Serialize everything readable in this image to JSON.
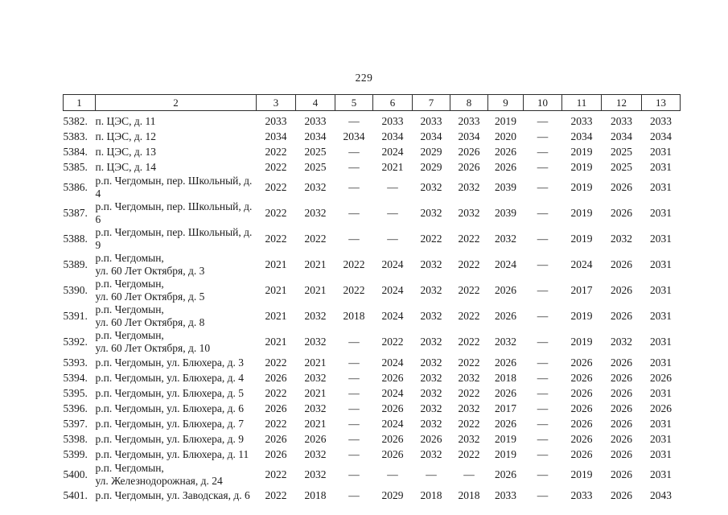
{
  "page": {
    "number": "229"
  },
  "table": {
    "columns": [
      "1",
      "2",
      "3",
      "4",
      "5",
      "6",
      "7",
      "8",
      "9",
      "10",
      "11",
      "12",
      "13"
    ],
    "rows": [
      {
        "num": "5382.",
        "address": "п. ЦЭС, д. 11",
        "values": [
          "2033",
          "2033",
          "—",
          "2033",
          "2033",
          "2033",
          "2019",
          "—",
          "2033",
          "2033",
          "2033"
        ]
      },
      {
        "num": "5383.",
        "address": "п. ЦЭС, д. 12",
        "values": [
          "2034",
          "2034",
          "2034",
          "2034",
          "2034",
          "2034",
          "2020",
          "—",
          "2034",
          "2034",
          "2034"
        ]
      },
      {
        "num": "5384.",
        "address": "п. ЦЭС, д. 13",
        "values": [
          "2022",
          "2025",
          "—",
          "2024",
          "2029",
          "2026",
          "2026",
          "—",
          "2019",
          "2025",
          "2031"
        ]
      },
      {
        "num": "5385.",
        "address": "п. ЦЭС, д. 14",
        "values": [
          "2022",
          "2025",
          "—",
          "2021",
          "2029",
          "2026",
          "2026",
          "—",
          "2019",
          "2025",
          "2031"
        ]
      },
      {
        "num": "5386.",
        "address": "р.п. Чегдомын, пер. Школьный, д. 4",
        "values": [
          "2022",
          "2032",
          "—",
          "—",
          "2032",
          "2032",
          "2039",
          "—",
          "2019",
          "2026",
          "2031"
        ]
      },
      {
        "num": "5387.",
        "address": "р.п. Чегдомын, пер. Школьный, д. 6",
        "values": [
          "2022",
          "2032",
          "—",
          "—",
          "2032",
          "2032",
          "2039",
          "—",
          "2019",
          "2026",
          "2031"
        ]
      },
      {
        "num": "5388.",
        "address": "р.п. Чегдомын, пер. Школьный, д. 9",
        "values": [
          "2022",
          "2022",
          "—",
          "—",
          "2022",
          "2022",
          "2032",
          "—",
          "2019",
          "2032",
          "2031"
        ]
      },
      {
        "num": "5389.",
        "address": "р.п. Чегдомын,\nул. 60 Лет Октября, д. 3",
        "values": [
          "2021",
          "2021",
          "2022",
          "2024",
          "2032",
          "2022",
          "2024",
          "—",
          "2024",
          "2026",
          "2031"
        ]
      },
      {
        "num": "5390.",
        "address": "р.п. Чегдомын,\nул. 60 Лет Октября, д. 5",
        "values": [
          "2021",
          "2021",
          "2022",
          "2024",
          "2032",
          "2022",
          "2026",
          "—",
          "2017",
          "2026",
          "2031"
        ]
      },
      {
        "num": "5391.",
        "address": "р.п. Чегдомын,\nул. 60 Лет Октября, д. 8",
        "values": [
          "2021",
          "2032",
          "2018",
          "2024",
          "2032",
          "2022",
          "2026",
          "—",
          "2019",
          "2026",
          "2031"
        ]
      },
      {
        "num": "5392.",
        "address": "р.п. Чегдомын,\nул. 60 Лет Октября, д. 10",
        "values": [
          "2021",
          "2032",
          "—",
          "2022",
          "2032",
          "2022",
          "2032",
          "—",
          "2019",
          "2032",
          "2031"
        ]
      },
      {
        "num": "5393.",
        "address": "р.п. Чегдомын, ул. Блюхера, д. 3",
        "values": [
          "2022",
          "2021",
          "—",
          "2024",
          "2032",
          "2022",
          "2026",
          "—",
          "2026",
          "2026",
          "2031"
        ]
      },
      {
        "num": "5394.",
        "address": "р.п. Чегдомын, ул. Блюхера, д. 4",
        "values": [
          "2026",
          "2032",
          "—",
          "2026",
          "2032",
          "2032",
          "2018",
          "—",
          "2026",
          "2026",
          "2026"
        ]
      },
      {
        "num": "5395.",
        "address": "р.п. Чегдомын, ул. Блюхера, д. 5",
        "values": [
          "2022",
          "2021",
          "—",
          "2024",
          "2032",
          "2022",
          "2026",
          "—",
          "2026",
          "2026",
          "2031"
        ]
      },
      {
        "num": "5396.",
        "address": "р.п. Чегдомын, ул. Блюхера, д. 6",
        "values": [
          "2026",
          "2032",
          "—",
          "2026",
          "2032",
          "2032",
          "2017",
          "—",
          "2026",
          "2026",
          "2026"
        ]
      },
      {
        "num": "5397.",
        "address": "р.п. Чегдомын, ул. Блюхера, д. 7",
        "values": [
          "2022",
          "2021",
          "—",
          "2024",
          "2032",
          "2022",
          "2026",
          "—",
          "2026",
          "2026",
          "2031"
        ]
      },
      {
        "num": "5398.",
        "address": "р.п. Чегдомын, ул. Блюхера, д. 9",
        "values": [
          "2026",
          "2026",
          "—",
          "2026",
          "2026",
          "2032",
          "2019",
          "—",
          "2026",
          "2026",
          "2031"
        ]
      },
      {
        "num": "5399.",
        "address": "р.п. Чегдомын, ул. Блюхера, д. 11",
        "values": [
          "2026",
          "2032",
          "—",
          "2026",
          "2032",
          "2022",
          "2019",
          "—",
          "2026",
          "2026",
          "2031"
        ]
      },
      {
        "num": "5400.",
        "address": "р.п. Чегдомын,\nул. Железнодорожная, д. 24",
        "values": [
          "2022",
          "2032",
          "—",
          "—",
          "—",
          "—",
          "2026",
          "—",
          "2019",
          "2026",
          "2031"
        ]
      },
      {
        "num": "5401.",
        "address": "р.п. Чегдомын, ул. Заводская, д. 6",
        "values": [
          "2022",
          "2018",
          "—",
          "2029",
          "2018",
          "2018",
          "2033",
          "—",
          "2033",
          "2026",
          "2043"
        ]
      }
    ]
  }
}
